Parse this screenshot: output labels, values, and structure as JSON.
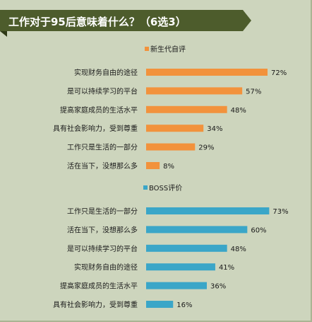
{
  "header": {
    "title": "工作对于95后意味着什么？（6选3）"
  },
  "colors": {
    "panel_background": "#cdd5bd",
    "panel_border": "#aab493",
    "banner": "#4d5c2c",
    "banner_fold": "#2f3a17",
    "text": "#1a1a1a",
    "series_1": "#f2923c",
    "series_2": "#3aa6c8"
  },
  "chart_data": [
    {
      "type": "bar",
      "orientation": "horizontal",
      "series": [
        {
          "name": "新生代自评",
          "color": "#f2923c",
          "values": [
            72,
            57,
            48,
            34,
            29,
            8
          ]
        }
      ],
      "categories": [
        "实现财务自由的途径",
        "是可以持续学习的平台",
        "提高家庭成员的生活水平",
        "具有社会影响力，受到尊重",
        "工作只是生活的一部分",
        "活在当下，没想那么多"
      ],
      "value_labels": [
        "72%",
        "57%",
        "48%",
        "34%",
        "29%",
        "8%"
      ],
      "unit": "%",
      "xlim": [
        0,
        100
      ],
      "legend_position": "top-center",
      "grid": false
    },
    {
      "type": "bar",
      "orientation": "horizontal",
      "series": [
        {
          "name": "BOSS评价",
          "color": "#3aa6c8",
          "values": [
            73,
            60,
            48,
            41,
            36,
            16
          ]
        }
      ],
      "categories": [
        "工作只是生活的一部分",
        "活在当下，没想那么多",
        "是可以持续学习的平台",
        "实现财务自由的途径",
        "提高家庭成员的生活水平",
        "具有社会影响力，受到尊重"
      ],
      "value_labels": [
        "73%",
        "60%",
        "48%",
        "41%",
        "36%",
        "16%"
      ],
      "unit": "%",
      "xlim": [
        0,
        100
      ],
      "legend_position": "top-left",
      "grid": false
    }
  ]
}
